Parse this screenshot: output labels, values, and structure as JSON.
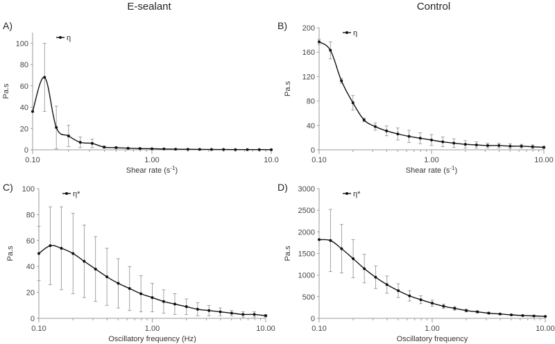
{
  "column_titles": {
    "left": "E-sealant",
    "right": "Control"
  },
  "chart_data": [
    {
      "panel": "A)",
      "type": "line",
      "xscale": "log",
      "xlim": [
        0.1,
        10.0
      ],
      "xticks": [
        "0.10",
        "1.00",
        "10.0"
      ],
      "ylim": [
        0,
        110
      ],
      "yticks": [
        "0",
        "20",
        "40",
        "60",
        "80",
        "100"
      ],
      "xlabel": "Shear rate (s",
      "xlabel_sup": "-1",
      "xlabel_end": ")",
      "ylabel": "Pa.s",
      "legend": "η",
      "legend_position": "top-left",
      "x": [
        0.1,
        0.126,
        0.158,
        0.2,
        0.251,
        0.316,
        0.398,
        0.501,
        0.631,
        0.794,
        1.0,
        1.26,
        1.58,
        2.0,
        2.51,
        3.16,
        3.98,
        5.01,
        6.31,
        7.94,
        10.0
      ],
      "y": [
        36,
        68,
        21,
        13,
        7,
        6,
        2.5,
        2,
        1.5,
        1.2,
        1.0,
        0.8,
        0.6,
        0.5,
        0.4,
        0.3,
        0.3,
        0.2,
        0.2,
        0.2,
        0.1
      ],
      "err": [
        0,
        32,
        20,
        10,
        5,
        4,
        1,
        0.8,
        0.6,
        0.5,
        0.4,
        0.3,
        0.3,
        0.2,
        0.2,
        0.1,
        0.1,
        0.1,
        0.1,
        0.1,
        0.1
      ]
    },
    {
      "panel": "B)",
      "type": "line",
      "xscale": "log",
      "xlim": [
        0.1,
        10.0
      ],
      "xticks": [
        "0.10",
        "1.00",
        "10.00"
      ],
      "ylim": [
        0,
        200
      ],
      "yticks": [
        "0",
        "40",
        "80",
        "120",
        "160",
        "200"
      ],
      "xlabel": "Shear rate (s",
      "xlabel_sup": "-1",
      "xlabel_end": ")",
      "ylabel": "Pa.s",
      "legend": "η",
      "legend_position": "top-left",
      "x": [
        0.1,
        0.126,
        0.158,
        0.2,
        0.251,
        0.316,
        0.398,
        0.501,
        0.631,
        0.794,
        1.0,
        1.26,
        1.58,
        2.0,
        2.51,
        3.16,
        3.98,
        5.01,
        6.31,
        7.94,
        10.0
      ],
      "y": [
        177,
        163,
        113,
        77,
        49,
        38,
        31,
        26,
        22,
        19,
        16,
        13,
        11,
        9,
        8,
        7,
        7,
        6,
        6,
        5,
        4
      ],
      "err": [
        4,
        14,
        4,
        12,
        3,
        6,
        8,
        10,
        10,
        9,
        9,
        8,
        7,
        6,
        5,
        4,
        4,
        4,
        3,
        3,
        2
      ]
    },
    {
      "panel": "C)",
      "type": "line",
      "xscale": "log",
      "xlim": [
        0.1,
        10.0
      ],
      "xticks": [
        "0.10",
        "1.00",
        "10.00"
      ],
      "ylim": [
        0,
        100
      ],
      "yticks": [
        "0",
        "20",
        "40",
        "60",
        "80",
        "100"
      ],
      "xlabel": "Oscillatory frequency (Hz)",
      "xlabel_sup": "",
      "xlabel_end": "",
      "ylabel": "Pa.s",
      "legend": "η*",
      "legend_position": "top-left",
      "x": [
        0.1,
        0.126,
        0.158,
        0.2,
        0.251,
        0.316,
        0.398,
        0.501,
        0.631,
        0.794,
        1.0,
        1.26,
        1.58,
        2.0,
        2.51,
        3.16,
        3.98,
        5.01,
        6.31,
        7.94,
        10.0
      ],
      "y": [
        50,
        56,
        54,
        50,
        44,
        38,
        32,
        27,
        23,
        19,
        16,
        13,
        11,
        9,
        7,
        6,
        5,
        4,
        3,
        3,
        2
      ],
      "err": [
        21,
        30,
        32,
        31,
        28,
        25,
        22,
        19,
        17,
        14,
        11,
        9,
        8,
        6,
        5,
        4,
        3,
        2,
        2,
        2,
        1
      ]
    },
    {
      "panel": "D)",
      "type": "line",
      "xscale": "log",
      "xlim": [
        0.1,
        10.0
      ],
      "xticks": [
        "0.10",
        "1.00",
        "10.00"
      ],
      "ylim": [
        0,
        3000
      ],
      "yticks": [
        "0",
        "500",
        "1000",
        "1500",
        "2000",
        "2500",
        "3000"
      ],
      "xlabel": "Oscillatory frequency",
      "xlabel_sup": "",
      "xlabel_end": "",
      "ylabel": "Pa.s",
      "legend": "η*",
      "legend_position": "top-left",
      "x": [
        0.1,
        0.126,
        0.158,
        0.2,
        0.251,
        0.316,
        0.398,
        0.501,
        0.631,
        0.794,
        1.0,
        1.26,
        1.58,
        2.0,
        2.51,
        3.16,
        3.98,
        5.01,
        6.31,
        7.94,
        10.0
      ],
      "y": [
        1820,
        1800,
        1610,
        1380,
        1150,
        950,
        780,
        640,
        520,
        430,
        350,
        280,
        230,
        180,
        150,
        120,
        100,
        80,
        65,
        55,
        45
      ],
      "err": [
        0,
        720,
        560,
        440,
        330,
        260,
        200,
        160,
        120,
        90,
        70,
        50,
        40,
        30,
        25,
        20,
        15,
        12,
        10,
        8,
        6
      ]
    }
  ]
}
